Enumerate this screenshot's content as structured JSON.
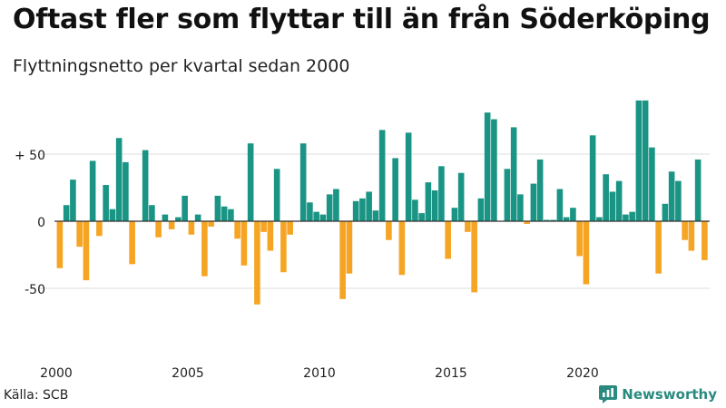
{
  "title": "Oftast fler som flyttar till än från Söderköping",
  "subtitle": "Flyttningsnetto per kvartal sedan 2000",
  "source": "Källa: SCB",
  "brand": "Newsworthy",
  "colors": {
    "positive": "#1a9484",
    "negative": "#f5a523",
    "grid": "#dddddd",
    "zero": "#333333",
    "brand": "#2a8a7f"
  },
  "chart_data": {
    "type": "bar",
    "title": "Oftast fler som flyttar till än från Söderköping",
    "subtitle": "Flyttningsnetto per kvartal sedan 2000",
    "xlabel": "",
    "ylabel": "",
    "x_ticks": [
      "2000",
      "2005",
      "2010",
      "2015",
      "2020"
    ],
    "y_ticks": [
      {
        "value": 50,
        "label": "+ 50"
      },
      {
        "value": 0,
        "label": "0"
      },
      {
        "value": -50,
        "label": "-50"
      }
    ],
    "ylim": [
      -90,
      95
    ],
    "grid": true,
    "legend": "none",
    "start_year": 2000,
    "quarters_per_year": 4,
    "values": [
      -35,
      12,
      31,
      -19,
      -44,
      45,
      -11,
      27,
      9,
      62,
      44,
      -32,
      0,
      53,
      12,
      -12,
      5,
      -6,
      3,
      19,
      -10,
      5,
      -41,
      -4,
      19,
      11,
      9,
      -13,
      -33,
      58,
      -62,
      -8,
      -22,
      39,
      -38,
      -10,
      0,
      58,
      14,
      7,
      5,
      20,
      24,
      -58,
      -39,
      15,
      17,
      22,
      8,
      68,
      -14,
      47,
      -40,
      66,
      16,
      6,
      29,
      23,
      41,
      -28,
      10,
      36,
      -8,
      -53,
      17,
      81,
      76,
      0,
      39,
      70,
      20,
      -2,
      28,
      46,
      1,
      1,
      24,
      3,
      10,
      -26,
      -47,
      64,
      3,
      35,
      22,
      30,
      5,
      7,
      90,
      90,
      55,
      -39,
      13,
      37,
      30,
      -14,
      -22,
      46,
      -29
    ]
  }
}
